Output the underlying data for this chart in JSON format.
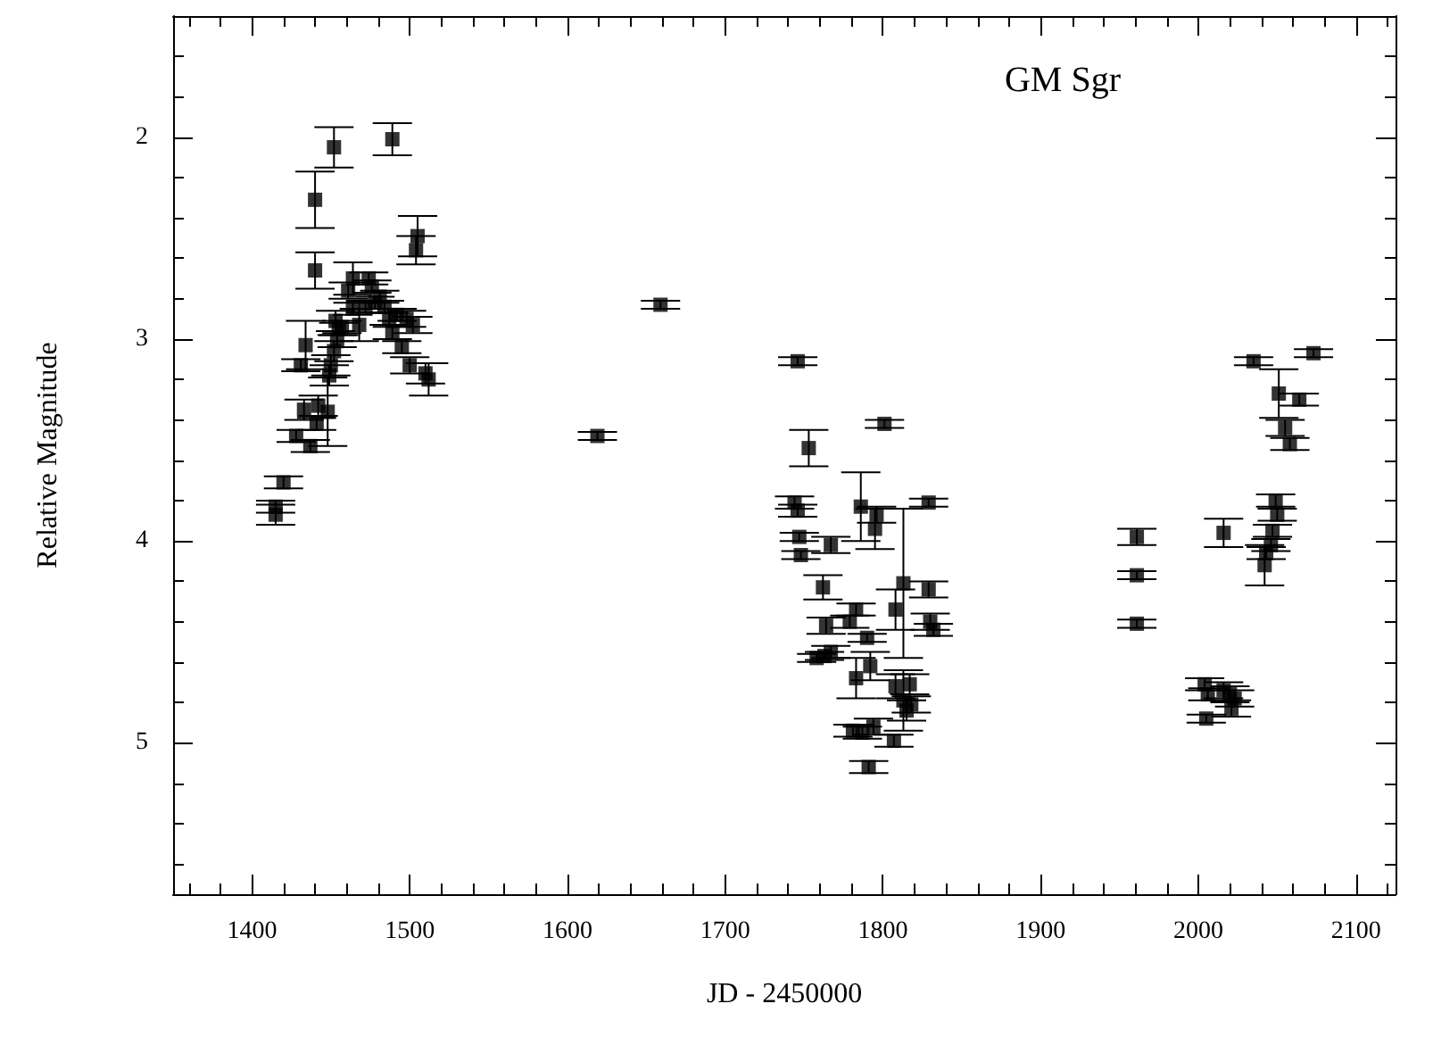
{
  "chart_data": {
    "type": "scatter",
    "title": "GM Sgr",
    "xlabel": "JD - 2450000",
    "ylabel": "Relative Magnitude",
    "color": "#000000",
    "marker": "square",
    "x": [
      1415,
      1415,
      1420,
      1428,
      1431,
      1434,
      1433,
      1437,
      1440,
      1440,
      1441,
      1442,
      1448,
      1449,
      1450,
      1452,
      1452,
      1453,
      1454,
      1455,
      1457,
      1461,
      1464,
      1464,
      1468,
      1472,
      1474,
      1476,
      1478,
      1481,
      1484,
      1487,
      1489,
      1489,
      1492,
      1495,
      1498,
      1500,
      1502,
      1504,
      1505,
      1510,
      1512,
      1619,
      1659,
      1746,
      1753,
      1744,
      1746,
      1747,
      1748,
      1762,
      1767,
      1764,
      1758,
      1763,
      1767,
      1779,
      1783,
      1783,
      1786,
      1781,
      1787,
      1790,
      1792,
      1791,
      1794,
      1795,
      1796,
      1801,
      1807,
      1808,
      1808,
      1813,
      1813,
      1815,
      1817,
      1818,
      1829,
      1829,
      1830,
      1832,
      1961,
      1961,
      1961,
      2004,
      2005,
      2006,
      2016,
      2016,
      2020,
      2021,
      2023,
      2035,
      2042,
      2043,
      2046,
      2047,
      2049,
      2050,
      2051,
      2055,
      2058,
      2064,
      2073
    ],
    "values": [
      3.87,
      3.83,
      3.71,
      3.48,
      3.13,
      3.03,
      3.35,
      3.53,
      2.31,
      2.66,
      3.42,
      3.33,
      3.36,
      3.18,
      3.13,
      2.05,
      3.06,
      2.91,
      3.01,
      2.95,
      2.94,
      2.76,
      2.7,
      2.85,
      2.93,
      2.84,
      2.7,
      2.74,
      2.82,
      2.79,
      2.84,
      2.9,
      2.01,
      2.97,
      2.88,
      3.04,
      2.9,
      3.13,
      2.93,
      2.56,
      2.49,
      3.17,
      3.2,
      3.48,
      2.83,
      3.11,
      3.54,
      3.81,
      3.85,
      3.98,
      4.07,
      4.23,
      4.02,
      4.42,
      4.58,
      4.57,
      4.55,
      4.4,
      4.34,
      4.68,
      3.83,
      4.94,
      4.95,
      4.48,
      4.62,
      5.12,
      4.92,
      3.94,
      3.87,
      3.42,
      4.99,
      4.34,
      4.72,
      4.21,
      4.79,
      4.84,
      4.71,
      4.81,
      3.81,
      4.24,
      4.4,
      4.44,
      3.98,
      4.17,
      4.41,
      4.71,
      4.88,
      4.76,
      4.74,
      3.96,
      4.76,
      4.83,
      4.78,
      3.11,
      4.12,
      4.06,
      4.02,
      3.95,
      3.8,
      3.87,
      3.27,
      3.44,
      3.52,
      3.3,
      3.07
    ],
    "errors": [
      0.05,
      0.03,
      0.03,
      0.03,
      0.03,
      0.12,
      0.05,
      0.03,
      0.14,
      0.09,
      0.03,
      0.05,
      0.17,
      0.05,
      0.05,
      0.1,
      0.05,
      0.05,
      0.03,
      0.03,
      0.03,
      0.04,
      0.08,
      0.03,
      0.08,
      0.03,
      0.03,
      0.03,
      0.03,
      0.03,
      0.03,
      0.03,
      0.08,
      0.03,
      0.03,
      0.03,
      0.04,
      0.04,
      0.04,
      0.07,
      0.1,
      0.05,
      0.08,
      0.02,
      0.02,
      0.02,
      0.09,
      0.03,
      0.03,
      0.02,
      0.02,
      0.06,
      0.04,
      0.04,
      0.02,
      0.02,
      0.03,
      0.03,
      0.03,
      0.1,
      0.17,
      0.03,
      0.03,
      0.02,
      0.07,
      0.03,
      0.04,
      0.1,
      0.04,
      0.02,
      0.03,
      0.1,
      0.06,
      0.37,
      0.15,
      0.05,
      0.05,
      0.04,
      0.02,
      0.04,
      0.04,
      0.03,
      0.04,
      0.02,
      0.02,
      0.03,
      0.02,
      0.03,
      0.04,
      0.07,
      0.04,
      0.04,
      0.04,
      0.02,
      0.1,
      0.03,
      0.03,
      0.03,
      0.03,
      0.03,
      0.12,
      0.04,
      0.03,
      0.03,
      0.02
    ],
    "xlim": [
      1350,
      2125
    ],
    "xticks": [
      {
        "value": 1360,
        "label": null
      },
      {
        "value": 1380,
        "label": null
      },
      1400,
      {
        "value": 1420,
        "label": null
      },
      {
        "value": 1440,
        "label": null
      },
      {
        "value": 1460,
        "label": null
      },
      {
        "value": 1480,
        "label": null
      },
      1500,
      {
        "value": 1520,
        "label": null
      },
      {
        "value": 1540,
        "label": null
      },
      {
        "value": 1560,
        "label": null
      },
      {
        "value": 1580,
        "label": null
      },
      1600,
      {
        "value": 1620,
        "label": null
      },
      {
        "value": 1640,
        "label": null
      },
      {
        "value": 1660,
        "label": null
      },
      {
        "value": 1680,
        "label": null
      },
      1700,
      {
        "value": 1720,
        "label": null
      },
      {
        "value": 1740,
        "label": null
      },
      {
        "value": 1760,
        "label": null
      },
      {
        "value": 1780,
        "label": null
      },
      1800,
      {
        "value": 1820,
        "label": null
      },
      {
        "value": 1840,
        "label": null
      },
      {
        "value": 1860,
        "label": null
      },
      {
        "value": 1880,
        "label": null
      },
      1900,
      {
        "value": 1920,
        "label": null
      },
      {
        "value": 1940,
        "label": null
      },
      {
        "value": 1960,
        "label": null
      },
      {
        "value": 1980,
        "label": null
      },
      2000,
      {
        "value": 2020,
        "label": null
      },
      {
        "value": 2040,
        "label": null
      },
      {
        "value": 2060,
        "label": null
      },
      {
        "value": 2080,
        "label": null
      },
      2100,
      {
        "value": 2120,
        "label": null
      }
    ],
    "ylim": [
      5.75,
      1.4
    ],
    "yticks": [
      {
        "value": 1.6,
        "label": null
      },
      {
        "value": 1.8,
        "label": null
      },
      2,
      {
        "value": 2.2,
        "label": null
      },
      {
        "value": 2.4,
        "label": null
      },
      {
        "value": 2.6,
        "label": null
      },
      {
        "value": 2.8,
        "label": null
      },
      3,
      {
        "value": 3.2,
        "label": null
      },
      {
        "value": 3.4,
        "label": null
      },
      {
        "value": 3.6,
        "label": null
      },
      {
        "value": 3.8,
        "label": null
      },
      4,
      {
        "value": 4.2,
        "label": null
      },
      {
        "value": 4.4,
        "label": null
      },
      {
        "value": 4.6,
        "label": null
      },
      {
        "value": 4.8,
        "label": null
      },
      5,
      {
        "value": 5.2,
        "label": null
      },
      {
        "value": 5.4,
        "label": null
      },
      {
        "value": 5.6,
        "label": null
      }
    ]
  }
}
